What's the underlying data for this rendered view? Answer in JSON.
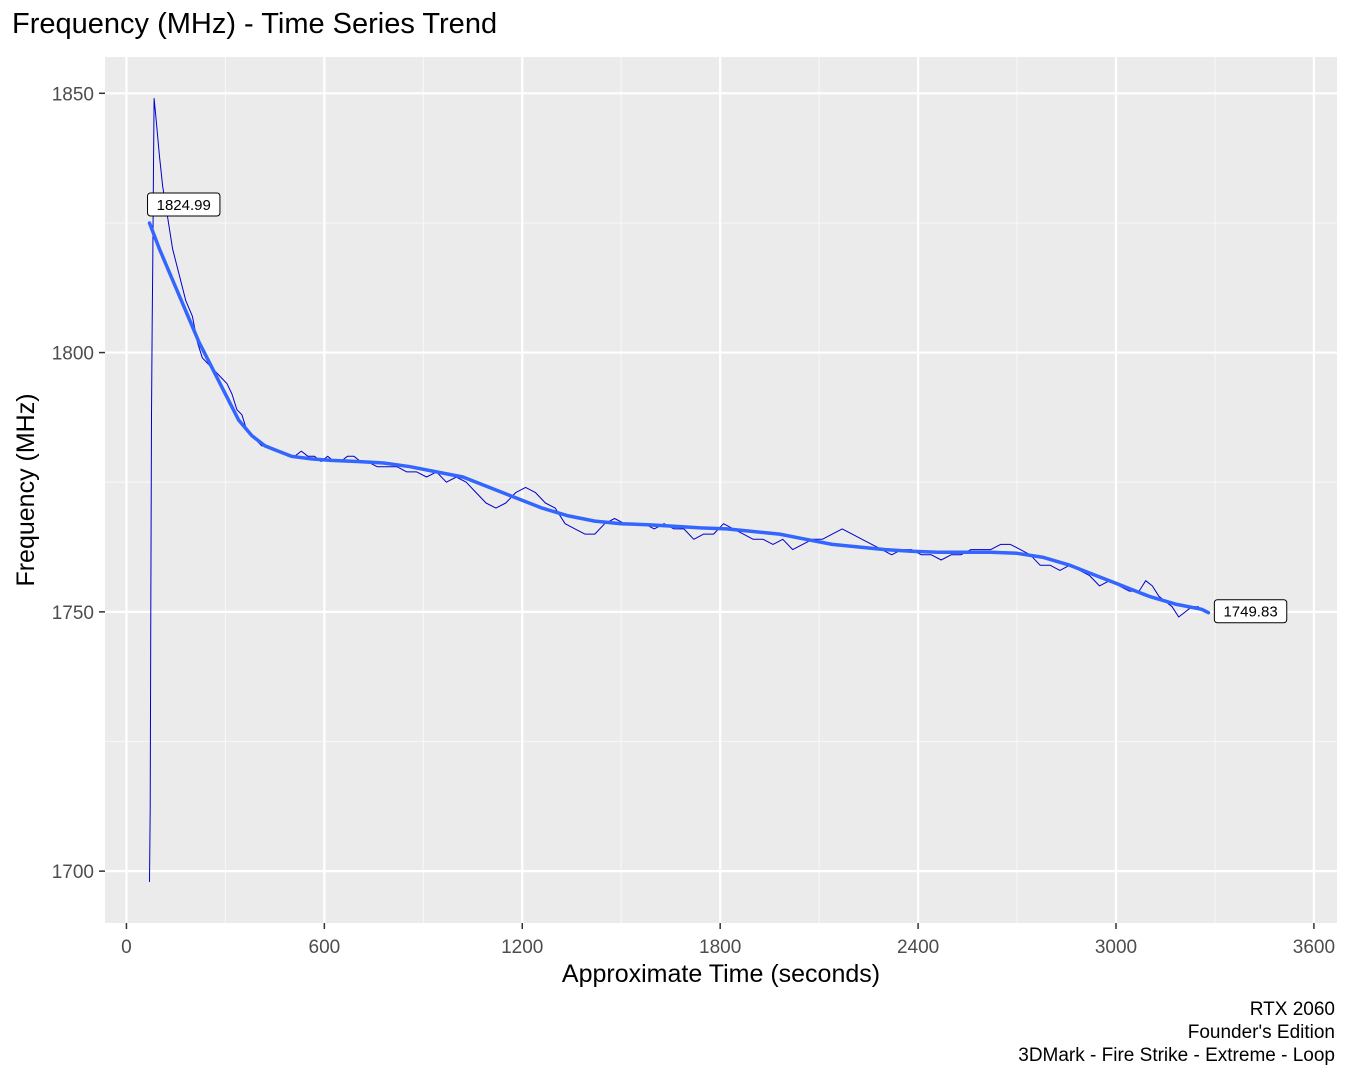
{
  "chart_data": {
    "type": "line",
    "title": "Frequency (MHz) - Time Series Trend",
    "xlabel": "Approximate Time (seconds)",
    "ylabel": "Frequency (MHz)",
    "xlim": [
      -65,
      3670
    ],
    "ylim": [
      1690,
      1857
    ],
    "x_ticks": [
      0,
      600,
      1200,
      1800,
      2400,
      3000,
      3600
    ],
    "y_ticks": [
      1700,
      1750,
      1800,
      1850
    ],
    "grid": true,
    "legend": "none",
    "series": [
      {
        "kind": "raw",
        "color": "#0000CC",
        "points": [
          [
            70,
            1698
          ],
          [
            72,
            1712
          ],
          [
            74,
            1750
          ],
          [
            76,
            1788
          ],
          [
            78,
            1806
          ],
          [
            80,
            1818
          ],
          [
            82,
            1836
          ],
          [
            84,
            1849
          ],
          [
            90,
            1845
          ],
          [
            100,
            1838
          ],
          [
            110,
            1832
          ],
          [
            125,
            1826
          ],
          [
            140,
            1820
          ],
          [
            160,
            1815
          ],
          [
            180,
            1810
          ],
          [
            200,
            1807
          ],
          [
            215,
            1802
          ],
          [
            230,
            1799
          ],
          [
            245,
            1798
          ],
          [
            260,
            1797
          ],
          [
            275,
            1796
          ],
          [
            290,
            1795
          ],
          [
            305,
            1794
          ],
          [
            320,
            1792
          ],
          [
            335,
            1789
          ],
          [
            350,
            1788
          ],
          [
            365,
            1785
          ],
          [
            380,
            1784
          ],
          [
            395,
            1783
          ],
          [
            410,
            1782
          ],
          [
            430,
            1782
          ],
          [
            450,
            1781
          ],
          [
            470,
            1781
          ],
          [
            490,
            1780
          ],
          [
            510,
            1780
          ],
          [
            530,
            1781
          ],
          [
            550,
            1780
          ],
          [
            570,
            1780
          ],
          [
            590,
            1779
          ],
          [
            610,
            1780
          ],
          [
            630,
            1779
          ],
          [
            650,
            1779
          ],
          [
            670,
            1780
          ],
          [
            690,
            1780
          ],
          [
            710,
            1779
          ],
          [
            730,
            1779
          ],
          [
            760,
            1778
          ],
          [
            790,
            1778
          ],
          [
            820,
            1778
          ],
          [
            850,
            1777
          ],
          [
            880,
            1777
          ],
          [
            910,
            1776
          ],
          [
            940,
            1777
          ],
          [
            970,
            1775
          ],
          [
            1000,
            1776
          ],
          [
            1030,
            1775
          ],
          [
            1060,
            1773
          ],
          [
            1090,
            1771
          ],
          [
            1120,
            1770
          ],
          [
            1150,
            1771
          ],
          [
            1180,
            1773
          ],
          [
            1210,
            1774
          ],
          [
            1240,
            1773
          ],
          [
            1270,
            1771
          ],
          [
            1300,
            1770
          ],
          [
            1330,
            1767
          ],
          [
            1360,
            1766
          ],
          [
            1390,
            1765
          ],
          [
            1420,
            1765
          ],
          [
            1450,
            1767
          ],
          [
            1480,
            1768
          ],
          [
            1510,
            1767
          ],
          [
            1540,
            1767
          ],
          [
            1570,
            1767
          ],
          [
            1600,
            1766
          ],
          [
            1630,
            1767
          ],
          [
            1660,
            1766
          ],
          [
            1690,
            1766
          ],
          [
            1720,
            1764
          ],
          [
            1750,
            1765
          ],
          [
            1780,
            1765
          ],
          [
            1810,
            1767
          ],
          [
            1840,
            1766
          ],
          [
            1870,
            1765
          ],
          [
            1900,
            1764
          ],
          [
            1930,
            1764
          ],
          [
            1960,
            1763
          ],
          [
            1990,
            1764
          ],
          [
            2020,
            1762
          ],
          [
            2050,
            1763
          ],
          [
            2080,
            1764
          ],
          [
            2110,
            1764
          ],
          [
            2140,
            1765
          ],
          [
            2170,
            1766
          ],
          [
            2200,
            1765
          ],
          [
            2230,
            1764
          ],
          [
            2260,
            1763
          ],
          [
            2290,
            1762
          ],
          [
            2320,
            1761
          ],
          [
            2350,
            1762
          ],
          [
            2380,
            1762
          ],
          [
            2410,
            1761
          ],
          [
            2440,
            1761
          ],
          [
            2470,
            1760
          ],
          [
            2500,
            1761
          ],
          [
            2530,
            1761
          ],
          [
            2560,
            1762
          ],
          [
            2590,
            1762
          ],
          [
            2620,
            1762
          ],
          [
            2650,
            1763
          ],
          [
            2680,
            1763
          ],
          [
            2710,
            1762
          ],
          [
            2740,
            1761
          ],
          [
            2770,
            1759
          ],
          [
            2800,
            1759
          ],
          [
            2830,
            1758
          ],
          [
            2860,
            1759
          ],
          [
            2890,
            1758
          ],
          [
            2920,
            1757
          ],
          [
            2950,
            1755
          ],
          [
            2980,
            1756
          ],
          [
            3010,
            1755
          ],
          [
            3040,
            1754
          ],
          [
            3070,
            1754
          ],
          [
            3090,
            1756
          ],
          [
            3110,
            1755
          ],
          [
            3130,
            1753
          ],
          [
            3150,
            1752
          ],
          [
            3170,
            1751
          ],
          [
            3190,
            1749
          ],
          [
            3210,
            1750
          ],
          [
            3230,
            1751
          ],
          [
            3250,
            1751
          ]
        ]
      },
      {
        "kind": "smooth",
        "color": "#3366FF",
        "points": [
          [
            70,
            1824.99
          ],
          [
            100,
            1820
          ],
          [
            140,
            1814
          ],
          [
            180,
            1808
          ],
          [
            220,
            1802
          ],
          [
            260,
            1797
          ],
          [
            300,
            1792
          ],
          [
            340,
            1787
          ],
          [
            380,
            1784
          ],
          [
            420,
            1782
          ],
          [
            460,
            1781
          ],
          [
            500,
            1780
          ],
          [
            560,
            1779.5
          ],
          [
            620,
            1779.2
          ],
          [
            700,
            1779
          ],
          [
            780,
            1778.7
          ],
          [
            860,
            1778
          ],
          [
            940,
            1777
          ],
          [
            1020,
            1776
          ],
          [
            1100,
            1774
          ],
          [
            1180,
            1772
          ],
          [
            1260,
            1770
          ],
          [
            1340,
            1768.5
          ],
          [
            1420,
            1767.5
          ],
          [
            1500,
            1767
          ],
          [
            1580,
            1766.8
          ],
          [
            1660,
            1766.5
          ],
          [
            1740,
            1766.2
          ],
          [
            1820,
            1766
          ],
          [
            1900,
            1765.5
          ],
          [
            1980,
            1765
          ],
          [
            2060,
            1764
          ],
          [
            2140,
            1763
          ],
          [
            2220,
            1762.5
          ],
          [
            2300,
            1762
          ],
          [
            2380,
            1761.7
          ],
          [
            2460,
            1761.5
          ],
          [
            2540,
            1761.5
          ],
          [
            2620,
            1761.5
          ],
          [
            2700,
            1761.3
          ],
          [
            2780,
            1760.5
          ],
          [
            2860,
            1759
          ],
          [
            2940,
            1757
          ],
          [
            3020,
            1755
          ],
          [
            3100,
            1753
          ],
          [
            3180,
            1751.5
          ],
          [
            3260,
            1750.5
          ],
          [
            3280,
            1749.83
          ]
        ]
      }
    ],
    "annotations": [
      {
        "x": 70,
        "y": 1824.99,
        "label": "1824.99",
        "anchor": "above-right"
      },
      {
        "x": 3280,
        "y": 1749.83,
        "label": "1749.83",
        "anchor": "right"
      }
    ]
  },
  "caption": {
    "line1": "RTX 2060",
    "line2": "Founder's Edition",
    "line3": "3DMark - Fire Strike - Extreme - Loop"
  }
}
